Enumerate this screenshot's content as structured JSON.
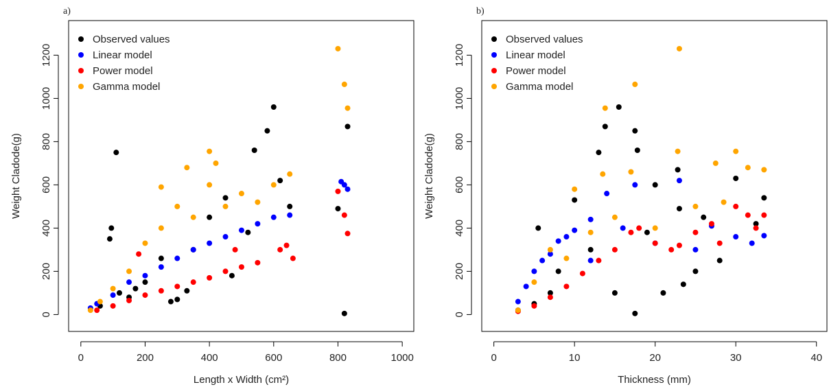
{
  "chart_data": [
    {
      "type": "scatter",
      "title": "a)",
      "x_label": "Length x Width (cm²)",
      "y_label": "Weight Cladode(g)",
      "xlim": [
        -38,
        1036
      ],
      "ylim": [
        -78,
        1360
      ],
      "xticks": [
        0,
        200,
        400,
        600,
        800,
        1000
      ],
      "yticks": [
        0,
        200,
        400,
        600,
        800,
        1000,
        1200
      ],
      "legend": "top-left",
      "series": [
        {
          "name": "Observed values",
          "color": "#000000",
          "x": [
            110,
            95,
            90,
            600,
            580,
            830,
            820,
            800,
            540,
            300,
            200,
            150,
            250,
            400,
            450,
            350,
            650,
            520,
            60,
            120,
            330,
            470,
            280,
            170,
            620
          ],
          "values": [
            750,
            400,
            350,
            960,
            850,
            870,
            5,
            490,
            760,
            70,
            150,
            80,
            260,
            450,
            540,
            300,
            500,
            380,
            40,
            100,
            110,
            180,
            60,
            120,
            620
          ]
        },
        {
          "name": "Linear model",
          "color": "#0000ff",
          "x": [
            810,
            820,
            830,
            650,
            600,
            500,
            400,
            300,
            200,
            100,
            50,
            30,
            150,
            250,
            350,
            450,
            550
          ],
          "values": [
            615,
            600,
            580,
            460,
            450,
            390,
            330,
            260,
            180,
            90,
            50,
            30,
            150,
            220,
            300,
            360,
            420
          ]
        },
        {
          "name": "Power model",
          "color": "#ff0000",
          "x": [
            800,
            820,
            830,
            660,
            640,
            550,
            500,
            450,
            400,
            350,
            300,
            250,
            200,
            150,
            100,
            50,
            620,
            480,
            180
          ],
          "values": [
            570,
            460,
            375,
            260,
            320,
            240,
            220,
            200,
            170,
            150,
            130,
            110,
            90,
            65,
            40,
            20,
            300,
            300,
            280
          ]
        },
        {
          "name": "Gamma model",
          "color": "#ffa500",
          "x": [
            800,
            820,
            830,
            400,
            420,
            650,
            600,
            500,
            330,
            250,
            300,
            350,
            450,
            200,
            150,
            100,
            60,
            30,
            550,
            250,
            400
          ],
          "values": [
            1230,
            1065,
            955,
            755,
            700,
            650,
            600,
            560,
            680,
            590,
            500,
            450,
            500,
            330,
            200,
            120,
            60,
            20,
            520,
            400,
            600
          ]
        }
      ]
    },
    {
      "type": "scatter",
      "title": "b)",
      "x_label": "Thickness  (mm)",
      "y_label": "Weight Cladode(g)",
      "xlim": [
        -1.5,
        41.3
      ],
      "ylim": [
        -78,
        1360
      ],
      "xticks": [
        0,
        10,
        20,
        30,
        40
      ],
      "yticks": [
        0,
        200,
        400,
        600,
        800,
        1000,
        1200
      ],
      "legend": "top-left",
      "series": [
        {
          "name": "Observed values",
          "color": "#000000",
          "x": [
            15.5,
            13.8,
            17.5,
            13,
            17.8,
            17.5,
            5.5,
            22.8,
            30,
            33.5,
            32.5,
            28,
            25,
            20,
            10,
            8,
            7,
            5,
            3,
            12,
            15,
            19,
            23,
            26,
            21,
            23.5
          ],
          "values": [
            960,
            870,
            850,
            750,
            760,
            5,
            400,
            670,
            630,
            540,
            420,
            250,
            200,
            600,
            530,
            200,
            100,
            50,
            20,
            300,
            100,
            380,
            490,
            450,
            100,
            140
          ]
        },
        {
          "name": "Linear model",
          "color": "#0000ff",
          "x": [
            3,
            4,
            5,
            6,
            7,
            8,
            9,
            10,
            12,
            14,
            17.5,
            23,
            20,
            25,
            27,
            30,
            32,
            33.5,
            12,
            16
          ],
          "values": [
            60,
            130,
            200,
            250,
            280,
            340,
            360,
            390,
            440,
            560,
            600,
            620,
            330,
            300,
            410,
            360,
            330,
            365,
            250,
            400
          ]
        },
        {
          "name": "Power model",
          "color": "#ff0000",
          "x": [
            3,
            5,
            7,
            9,
            11,
            13,
            15,
            17,
            18,
            20,
            22,
            23,
            25,
            27,
            30,
            31.5,
            33.5,
            32.5,
            28
          ],
          "values": [
            15,
            40,
            80,
            130,
            190,
            250,
            300,
            380,
            400,
            330,
            300,
            320,
            380,
            420,
            500,
            460,
            460,
            400,
            330
          ]
        },
        {
          "name": "Gamma model",
          "color": "#ffa500",
          "x": [
            23,
            17.5,
            13.8,
            22.8,
            30,
            31.5,
            33.5,
            27.5,
            13.5,
            10,
            7,
            5,
            3,
            15,
            20,
            25,
            17,
            12,
            9,
            28.5
          ],
          "values": [
            1230,
            1065,
            955,
            755,
            755,
            680,
            670,
            700,
            650,
            580,
            300,
            150,
            20,
            450,
            400,
            500,
            660,
            380,
            260,
            520
          ]
        }
      ]
    }
  ]
}
